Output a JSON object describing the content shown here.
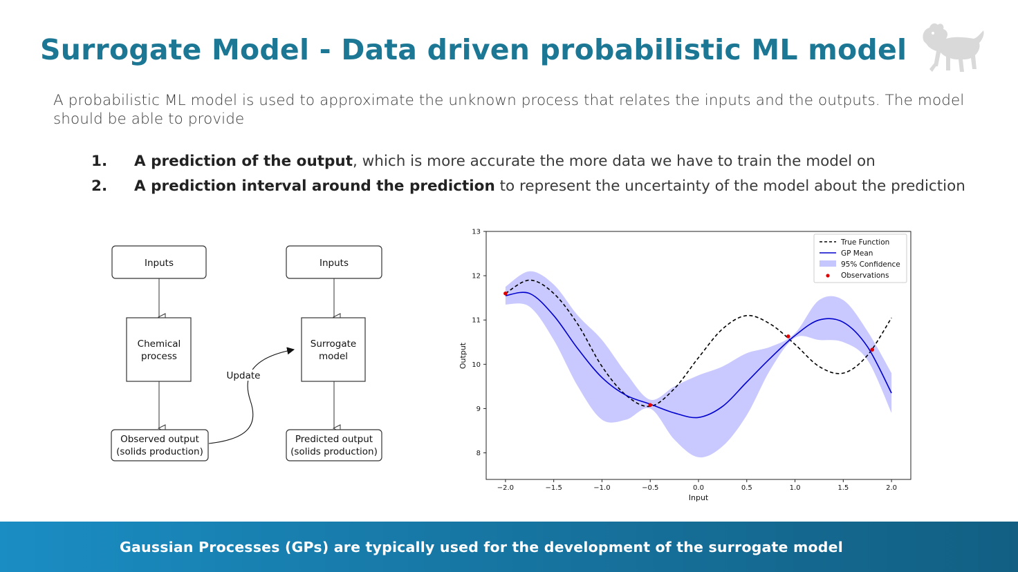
{
  "title": "Surrogate Model - Data driven probabilistic ML model",
  "logo": {
    "icon": "six-legged-dog-logo-icon",
    "color": "#d8d8d8"
  },
  "intro": "A probabilistic ML model is used to approximate the unknown process that relates the inputs and the outputs. The model should be able to provide",
  "list": [
    {
      "num": "1.",
      "bold": "A prediction of the output",
      "rest": ", which is more accurate the more data we have to train the model on"
    },
    {
      "num": "2.",
      "bold": "A prediction interval around the prediction",
      "rest": " to represent the uncertainty of the model about the prediction"
    }
  ],
  "flowchart": {
    "left": {
      "input": "Inputs",
      "process_line1": "Chemical",
      "process_line2": "process",
      "output_line1": "Observed output",
      "output_line2": "(solids production)"
    },
    "right": {
      "input": "Inputs",
      "process_line1": "Surrogate",
      "process_line2": "model",
      "output_line1": "Predicted output",
      "output_line2": "(solids production)"
    },
    "update_label": "Update"
  },
  "chart_data": {
    "type": "line",
    "xlabel": "Input",
    "ylabel": "Output",
    "xlim": [
      -2.2,
      2.2
    ],
    "ylim": [
      7.4,
      13.0
    ],
    "xticks": [
      -2.0,
      -1.5,
      -1.0,
      -0.5,
      0.0,
      0.5,
      1.0,
      1.5,
      2.0
    ],
    "xtick_labels": [
      "−2.0",
      "−1.5",
      "−1.0",
      "−0.5",
      "0.0",
      "0.5",
      "1.0",
      "1.5",
      "2.0"
    ],
    "yticks": [
      8,
      9,
      10,
      11,
      12,
      13
    ],
    "ytick_labels": [
      "8",
      "9",
      "10",
      "11",
      "12",
      "13"
    ],
    "legend": {
      "position": "top-right",
      "entries": [
        "True Function",
        "GP Mean",
        "95% Confidence",
        "Observations"
      ]
    },
    "x": [
      -2.0,
      -1.75,
      -1.5,
      -1.25,
      -1.0,
      -0.75,
      -0.5,
      -0.25,
      0.0,
      0.25,
      0.5,
      0.75,
      1.0,
      1.25,
      1.5,
      1.75,
      2.0
    ],
    "series": [
      {
        "name": "True Function",
        "style": "dashed",
        "color": "#000000",
        "values": [
          11.6,
          11.9,
          11.6,
          10.9,
          9.95,
          9.3,
          9.05,
          9.45,
          10.15,
          10.8,
          11.1,
          10.9,
          10.45,
          9.95,
          9.8,
          10.2,
          11.05
        ]
      },
      {
        "name": "GP Mean",
        "style": "solid",
        "color": "#0000cc",
        "values": [
          11.55,
          11.6,
          11.1,
          10.35,
          9.7,
          9.3,
          9.1,
          8.9,
          8.8,
          9.05,
          9.6,
          10.15,
          10.65,
          11.0,
          10.95,
          10.4,
          9.35
        ]
      },
      {
        "name": "95% Confidence",
        "style": "band",
        "color": "#c6c6ff",
        "lower": [
          11.35,
          11.3,
          10.55,
          9.5,
          8.75,
          8.75,
          9.0,
          8.3,
          7.9,
          8.15,
          8.85,
          9.9,
          10.6,
          10.55,
          10.5,
          10.1,
          8.9
        ],
        "upper": [
          11.75,
          12.1,
          11.8,
          11.1,
          10.55,
          9.8,
          9.2,
          9.5,
          9.75,
          9.95,
          10.25,
          10.4,
          10.7,
          11.45,
          11.45,
          10.75,
          9.8
        ]
      },
      {
        "name": "Observations",
        "style": "points",
        "color": "#e00000",
        "x": [
          -2.0,
          -0.5,
          0.93,
          1.8
        ],
        "values": [
          11.6,
          9.08,
          10.63,
          10.33
        ]
      }
    ]
  },
  "footer": "Gaussian Processes (GPs) are typically used for the development of the surrogate model"
}
